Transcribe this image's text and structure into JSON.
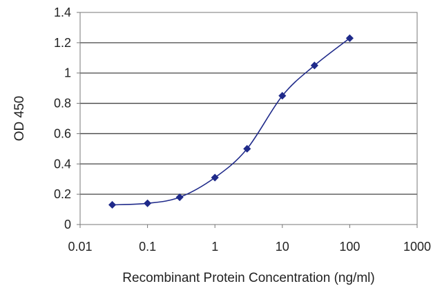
{
  "chart_data": {
    "type": "line",
    "title": "",
    "xlabel": "Recombinant Protein Concentration (ng/ml)",
    "ylabel": "OD 450",
    "x_scale": "log",
    "xlim": [
      0.01,
      1000
    ],
    "ylim": [
      0,
      1.4
    ],
    "x_ticks": [
      0.01,
      0.1,
      1,
      10,
      100,
      1000
    ],
    "x_tick_labels": [
      "0.01",
      "0.1",
      "1",
      "10",
      "100",
      "1000"
    ],
    "y_ticks": [
      0,
      0.2,
      0.4,
      0.6,
      0.8,
      1,
      1.2,
      1.4
    ],
    "y_tick_labels": [
      "0",
      "0.2",
      "0.4",
      "0.6",
      "0.8",
      "1",
      "1.2",
      "1.4"
    ],
    "grid": "horizontal",
    "legend": "none",
    "series": [
      {
        "x": [
          0.03,
          0.1,
          0.3,
          1,
          3,
          10,
          30,
          100
        ],
        "y": [
          0.13,
          0.14,
          0.18,
          0.31,
          0.5,
          0.85,
          1.05,
          1.23
        ],
        "color": "#1f2a8a",
        "marker": "diamond"
      }
    ]
  }
}
